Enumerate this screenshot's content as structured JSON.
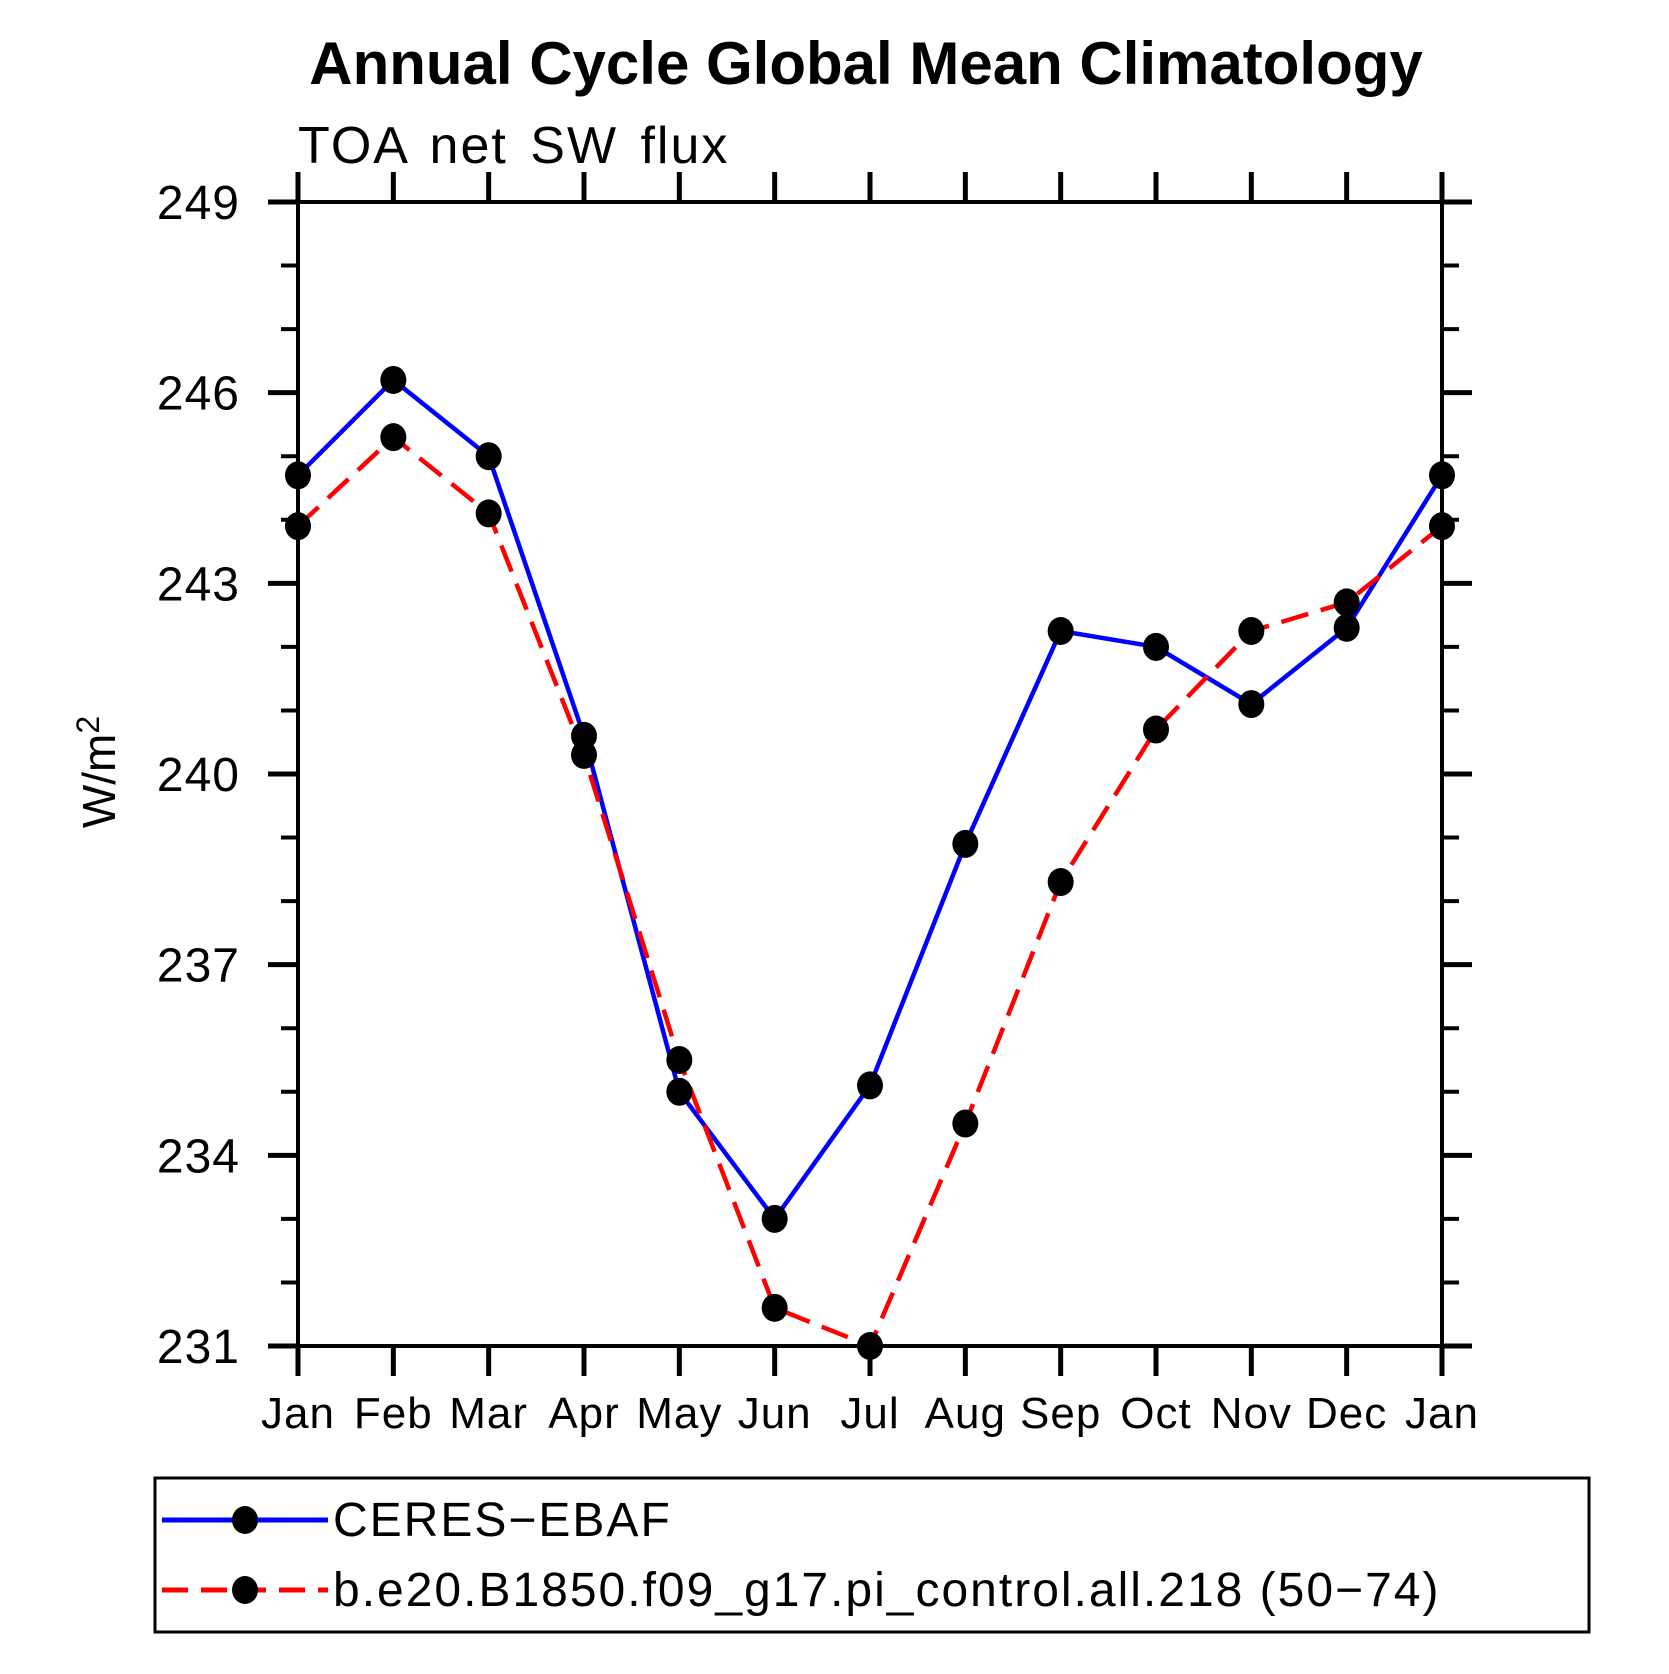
{
  "chart_data": {
    "type": "line",
    "title": "Annual Cycle Global Mean Climatology",
    "subtitle": "TOA net SW flux",
    "ylabel_main": "W/m",
    "ylabel_sup": "2",
    "x_tick_labels": [
      "Jan",
      "Feb",
      "Mar",
      "Apr",
      "May",
      "Jun",
      "Jul",
      "Aug",
      "Sep",
      "Oct",
      "Nov",
      "Dec",
      "Jan"
    ],
    "ylim": [
      231,
      249
    ],
    "y_major_tick_step": 3,
    "y_minor_tick_step": 1,
    "y_major_tick_labels": [
      "231",
      "234",
      "237",
      "240",
      "243",
      "246",
      "249"
    ],
    "grid": false,
    "legend_position": "bottom",
    "axis_color": "#000000",
    "marker_color": "#000000",
    "series": [
      {
        "name": "CERES−EBAF",
        "color": "#0000ff",
        "line_style": "solid",
        "marker": "filled-circle",
        "values": [
          244.7,
          246.2,
          245.0,
          240.6,
          235.0,
          233.0,
          235.1,
          238.9,
          242.25,
          242.0,
          241.1,
          242.3,
          244.7
        ]
      },
      {
        "name": "b.e20.B1850.f09_g17.pi_control.all.218 (50−74)",
        "color": "#ff0000",
        "line_style": "dashed",
        "marker": "filled-circle",
        "values": [
          243.9,
          245.3,
          244.1,
          240.3,
          235.5,
          231.6,
          231.0,
          234.5,
          238.3,
          240.7,
          242.25,
          242.7,
          243.9
        ]
      }
    ]
  }
}
